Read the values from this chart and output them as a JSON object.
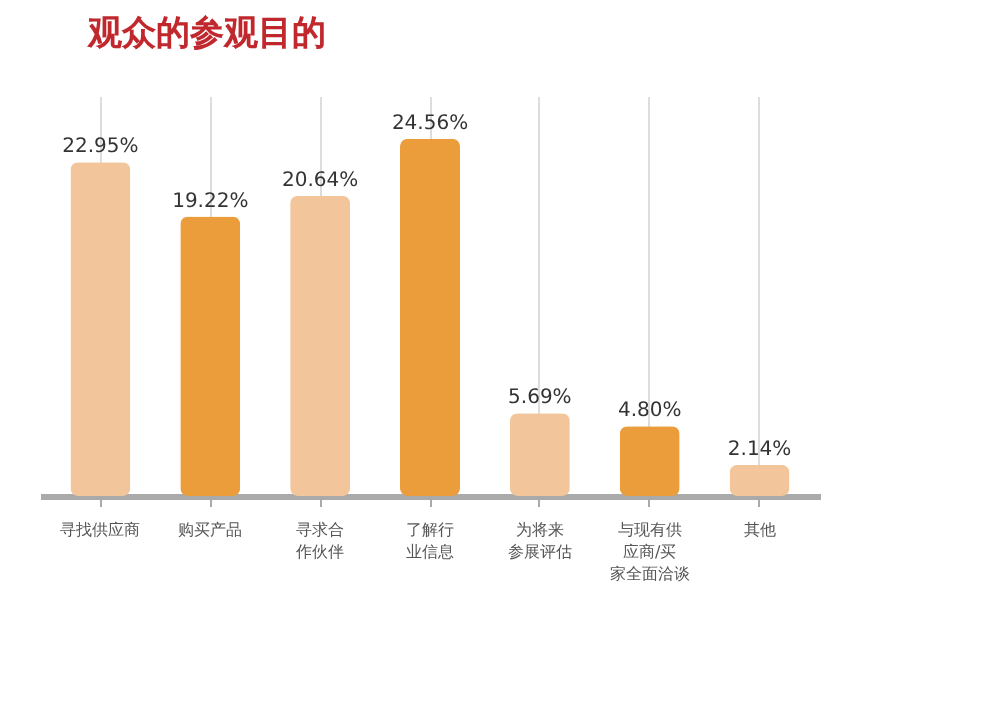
{
  "chart_data": {
    "type": "bar",
    "title": "观众的参观目的",
    "categories": [
      "寻找供应商",
      "购买产品",
      "寻求合作伙伴",
      "了解行业信息",
      "为将来参展评估",
      "与现有供应商/买家全面洽谈",
      "其他"
    ],
    "values": [
      22.95,
      19.22,
      20.64,
      24.56,
      5.69,
      4.8,
      2.14
    ],
    "colors": [
      "#f2c59b",
      "#eb9d3c",
      "#f2c59b",
      "#eb9d3c",
      "#f2c59b",
      "#eb9d3c",
      "#f2c59b"
    ],
    "value_labels": [
      "22.95%",
      "19.22%",
      "20.64%",
      "24.56%",
      "5.69%",
      "4.80%",
      "2.14%"
    ],
    "grid": "x"
  }
}
